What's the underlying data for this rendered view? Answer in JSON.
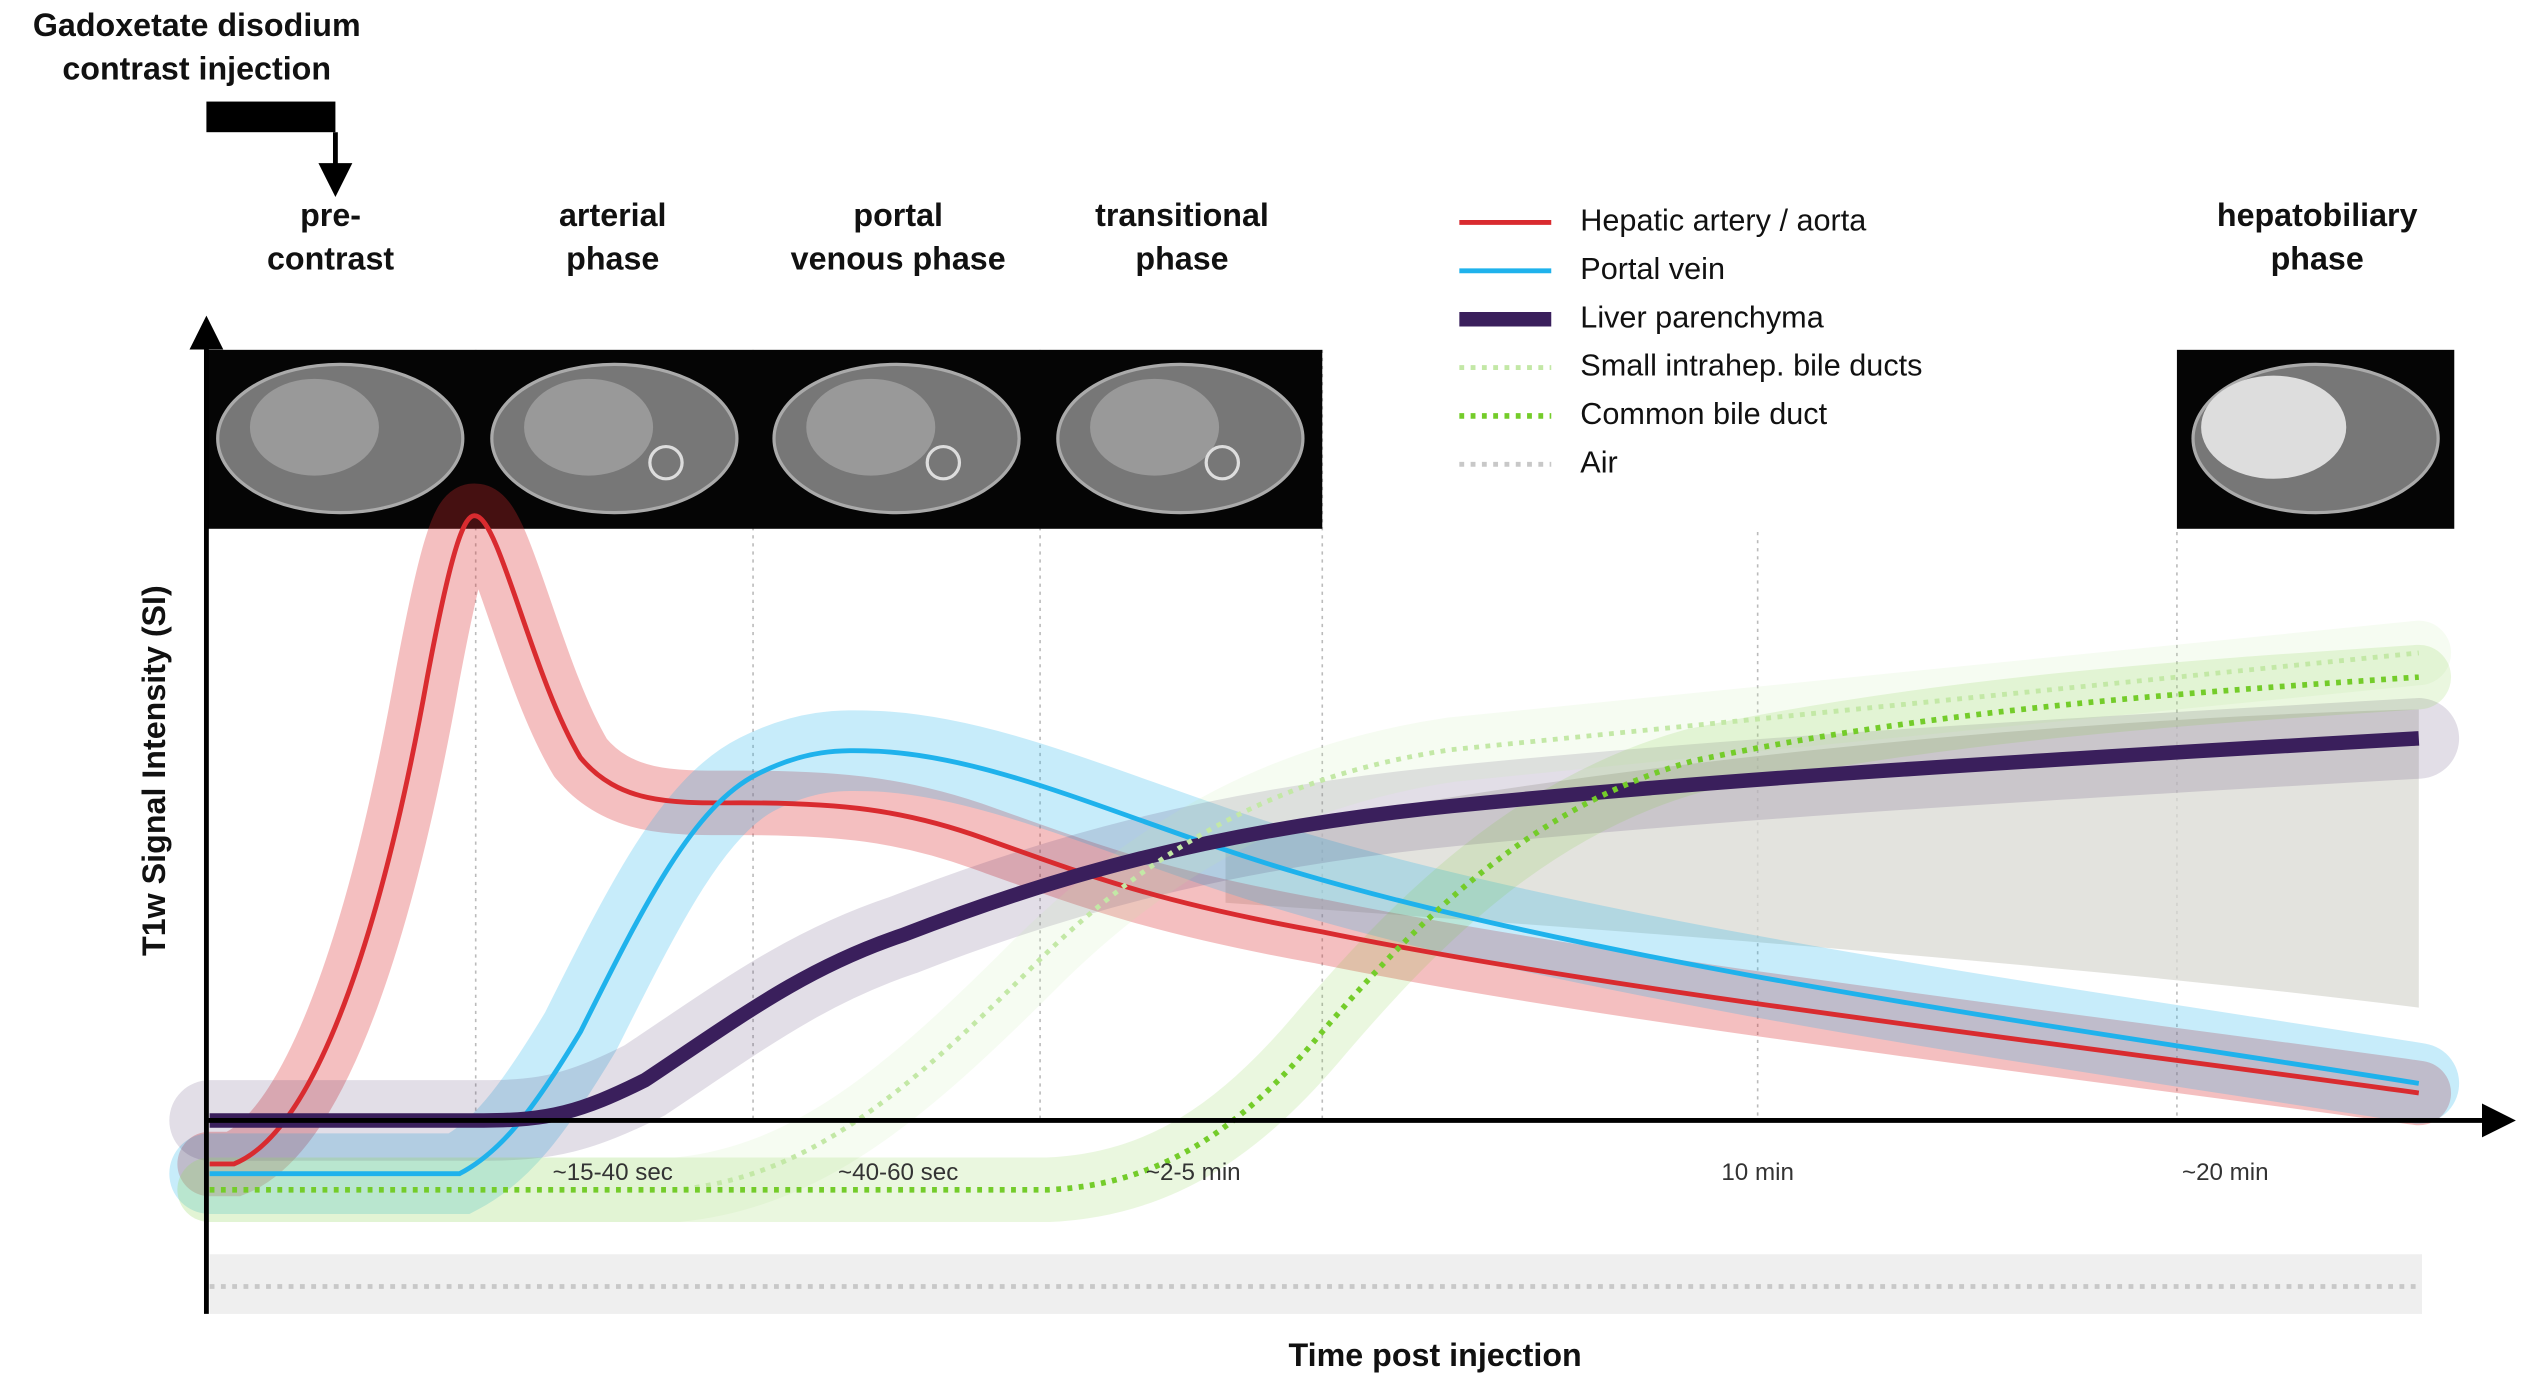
{
  "injection": {
    "lines": [
      "Gadoxetate disodium",
      "contrast injection"
    ]
  },
  "phases": [
    {
      "lines": [
        "pre-",
        "contrast"
      ]
    },
    {
      "lines": [
        "arterial",
        "phase"
      ]
    },
    {
      "lines": [
        "portal",
        "venous phase"
      ]
    },
    {
      "lines": [
        "transitional",
        "phase"
      ]
    },
    {
      "lines": [
        "hepatobiliary",
        "phase"
      ]
    }
  ],
  "time_labels": [
    "~15-40 sec",
    "~40-60 sec",
    "~2-5 min",
    "10 min",
    "~20 min"
  ],
  "legend": [
    {
      "label": "Hepatic artery / aorta",
      "color": "#d92b2f"
    },
    {
      "label": "Portal vein",
      "color": "#1fb2ec"
    },
    {
      "label": "Liver parenchyma",
      "color": "#3a1f5c"
    },
    {
      "label": "Small intrahep. bile ducts",
      "color": "#c3e8a6"
    },
    {
      "label": "Common bile duct",
      "color": "#74cc2a"
    },
    {
      "label": "Air",
      "color": "#c8c8c8"
    }
  ],
  "y_axis_label": "T1w Signal Intensity (SI)",
  "x_axis_label": "Time post injection"
}
